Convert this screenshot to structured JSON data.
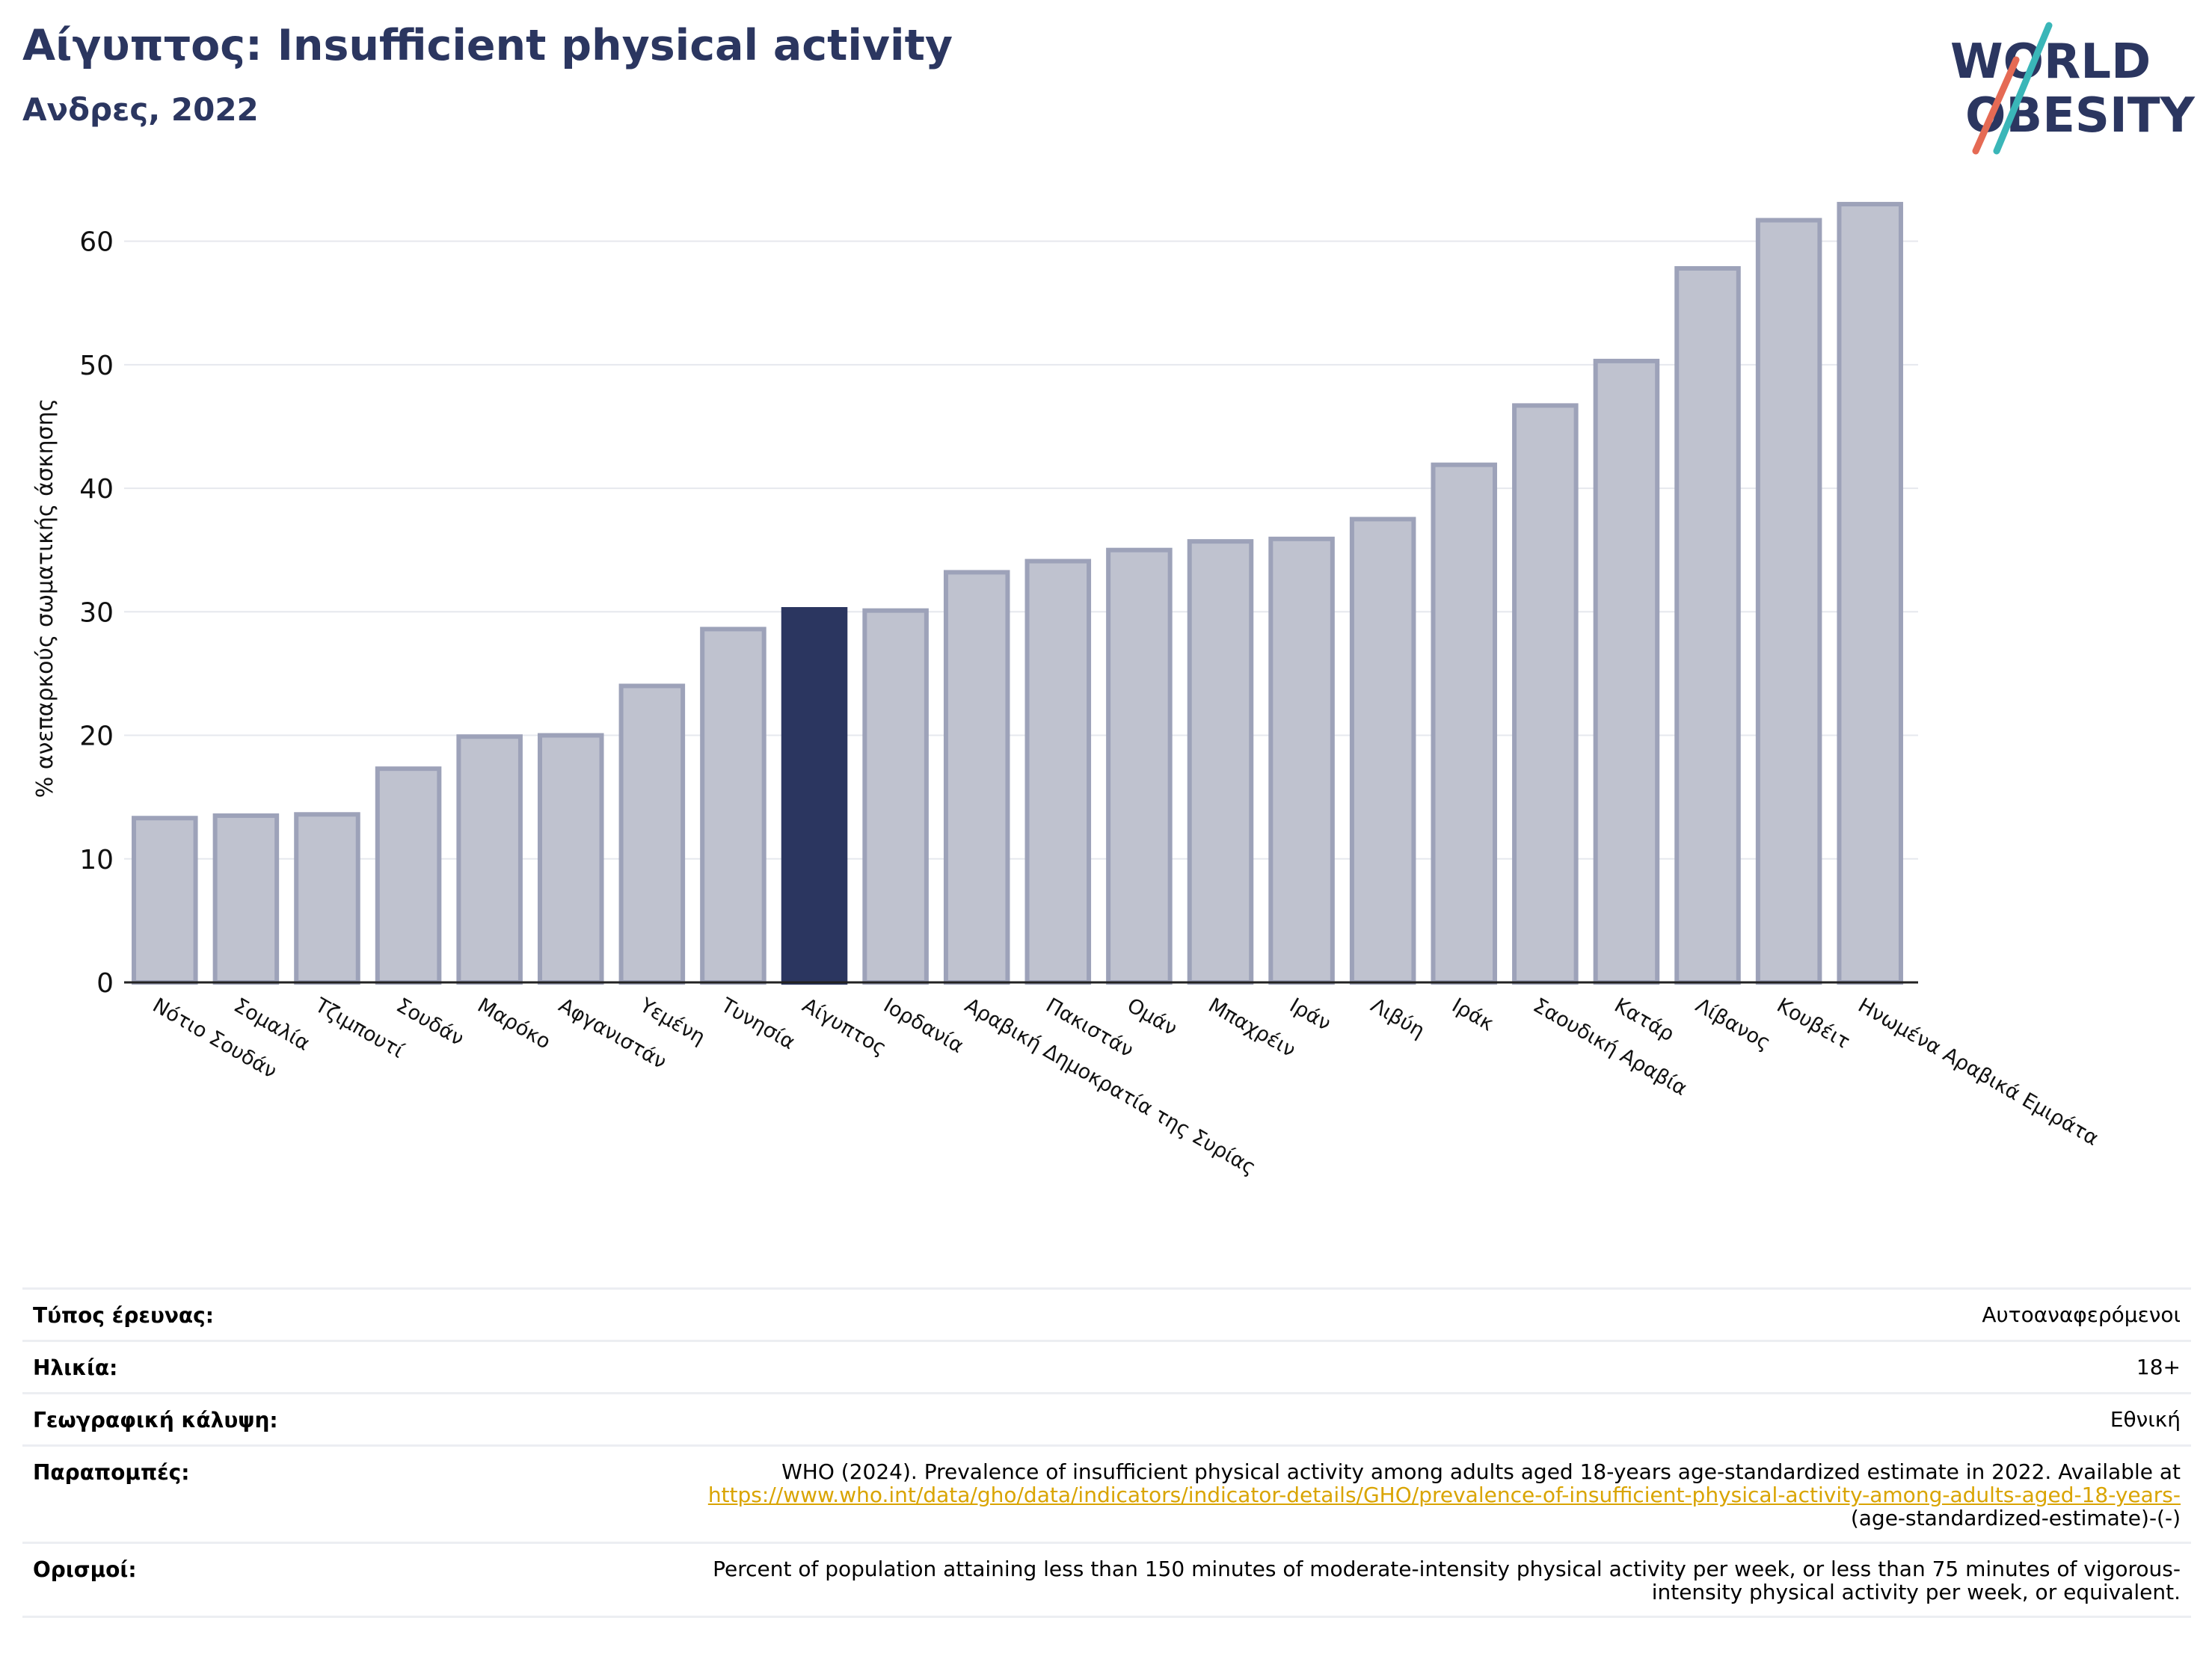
{
  "header": {
    "title": "Αίγυπτος: Insufficient physical activity",
    "subtitle": "Ανδρες, 2022"
  },
  "logo": {
    "line1": "WORLD",
    "line2": "OBESITY"
  },
  "colors": {
    "title": "#2b3660",
    "bar_default": "#bfc2cf",
    "bar_border": "#9da2b9",
    "bar_highlight": "#2b3660",
    "logo_navy": "#2b3660",
    "logo_teal": "#3ab6b8",
    "logo_coral": "#e56a54"
  },
  "chart_data": {
    "type": "bar",
    "ylabel": "% ανεπαρκούς σωματικής άσκησης",
    "xlabel": "",
    "ylim": [
      0,
      65
    ],
    "yticks": [
      0,
      10,
      20,
      30,
      40,
      50,
      60
    ],
    "grid": true,
    "highlight": "Αίγυπτος",
    "categories": [
      "Νότιο Σουδάν",
      "Σομαλία",
      "Τζιμπουτί",
      "Σουδάν",
      "Μαρόκο",
      "Αφγανιστάν",
      "Υεμένη",
      "Τυνησία",
      "Αίγυπτος",
      "Ιορδανία",
      "Αραβική Δημοκρατία της Συρίας",
      "Πακιστάν",
      "Ομάν",
      "Μπαχρέιν",
      "Ιράν",
      "Λιβύη",
      "Ιράκ",
      "Σαουδική Αραβία",
      "Κατάρ",
      "Λίβανος",
      "Κουβέιτ",
      "Ηνωμένα Αραβικά Εμιράτα"
    ],
    "values": [
      13.3,
      13.5,
      13.6,
      17.3,
      19.9,
      20.0,
      24.0,
      28.6,
      30.2,
      30.1,
      33.2,
      34.1,
      35.0,
      35.7,
      35.9,
      37.5,
      41.9,
      46.7,
      50.3,
      57.8,
      61.7,
      63.0
    ]
  },
  "info": {
    "survey_type_label": "Τύπος έρευνας:",
    "survey_type_value": "Αυτοαναφερόμενοι",
    "age_label": "Ηλικία:",
    "age_value": "18+",
    "coverage_label": "Γεωγραφική κάλυψη:",
    "coverage_value": "Εθνική",
    "references_label": "Παραπομπές:",
    "references_text": "WHO (2024). Prevalence of insufficient physical activity among adults aged 18-years age-standardized estimate in 2022. Available at",
    "references_link": "https://www.who.int/data/gho/data/indicators/indicator-details/GHO/prevalence-of-insufficient-physical-activity-among-adults-aged-18-years-",
    "references_tail": "(age-standardized-estimate)-(-)",
    "definitions_label": "Ορισμοί:",
    "definitions_line1": "Percent of population attaining less than 150 minutes of moderate-intensity physical activity per week, or less than 75 minutes of vigorous-",
    "definitions_line2": "intensity physical activity per week, or equivalent."
  }
}
